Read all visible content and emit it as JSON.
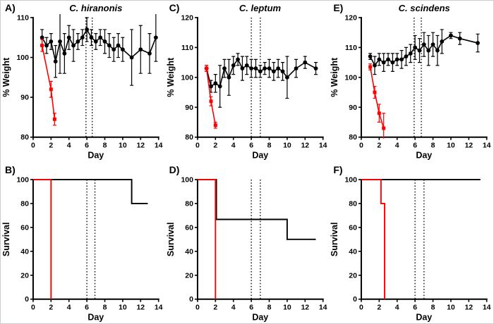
{
  "figure": {
    "background": "#ffffff",
    "border_color": "#c9ccd1",
    "black": "#000000",
    "red": "#ff0000"
  },
  "chart_data": [
    {
      "id": "A",
      "panel_label": "A)",
      "title": "C. hiranonis",
      "type": "line",
      "xlabel": "Day",
      "ylabel": "% Weight",
      "xlim": [
        0,
        14
      ],
      "ylim": [
        80,
        110
      ],
      "xticks": [
        0,
        2,
        4,
        6,
        8,
        10,
        12,
        14
      ],
      "yticks": [
        80,
        90,
        100,
        110
      ],
      "vlines": [
        5.9,
        6.6
      ],
      "series": [
        {
          "name": "black",
          "color": "#000000",
          "marker": "circle",
          "x": [
            1,
            1.5,
            2,
            2.5,
            3,
            3.5,
            4,
            4.5,
            5,
            5.5,
            6,
            6.5,
            7,
            7.5,
            8,
            8.5,
            9,
            9.5,
            10,
            11,
            12,
            13,
            13.7
          ],
          "y": [
            105,
            103,
            104,
            99,
            104,
            101,
            105,
            103,
            104,
            105,
            107,
            105,
            104,
            105,
            104,
            103,
            102,
            103,
            102,
            100,
            102,
            101,
            105
          ],
          "err": [
            2,
            2,
            2,
            4,
            8,
            5,
            3,
            4,
            2,
            2,
            3,
            2,
            2,
            2,
            3,
            3,
            3,
            3,
            3,
            7,
            6,
            5,
            6
          ]
        },
        {
          "name": "red",
          "color": "#ff0000",
          "marker": "square",
          "x": [
            1,
            2,
            2.4
          ],
          "y": [
            103,
            92,
            84.5
          ],
          "err": [
            1.5,
            2,
            1.5
          ]
        }
      ]
    },
    {
      "id": "C",
      "panel_label": "C)",
      "title": "C. leptum",
      "type": "line",
      "xlabel": "Day",
      "ylabel": "% Weight",
      "xlim": [
        0,
        14
      ],
      "ylim": [
        80,
        120
      ],
      "xticks": [
        0,
        2,
        4,
        6,
        8,
        10,
        12,
        14
      ],
      "yticks": [
        80,
        90,
        100,
        110,
        120
      ],
      "vlines": [
        6,
        7
      ],
      "series": [
        {
          "name": "black",
          "color": "#000000",
          "marker": "circle",
          "x": [
            1,
            1.5,
            2,
            2.5,
            3,
            3.5,
            4,
            4.5,
            5,
            5.5,
            6,
            6.5,
            7,
            7.5,
            8,
            8.5,
            9,
            9.5,
            10,
            11,
            12,
            13.2
          ],
          "y": [
            103,
            97,
            98,
            97,
            103,
            100,
            104,
            106,
            103,
            104,
            103,
            103,
            102,
            103,
            103,
            102,
            103,
            102,
            100,
            103,
            105,
            103
          ],
          "err": [
            1,
            2,
            3,
            7,
            3,
            6,
            3,
            2,
            4,
            3,
            3,
            3,
            2,
            2,
            3,
            3,
            3,
            3,
            7,
            3,
            2,
            2
          ]
        },
        {
          "name": "red",
          "color": "#ff0000",
          "marker": "square",
          "x": [
            1,
            1.5,
            2
          ],
          "y": [
            103,
            92,
            84
          ],
          "err": [
            1,
            1.5,
            1
          ]
        }
      ]
    },
    {
      "id": "E",
      "panel_label": "E)",
      "title": "C. scindens",
      "type": "line",
      "xlabel": "Day",
      "ylabel": "% Weight",
      "xlim": [
        0,
        14
      ],
      "ylim": [
        80,
        120
      ],
      "xticks": [
        0,
        2,
        4,
        6,
        8,
        10,
        12,
        14
      ],
      "yticks": [
        80,
        90,
        100,
        110,
        120
      ],
      "vlines": [
        5.9,
        6.7
      ],
      "series": [
        {
          "name": "black",
          "color": "#000000",
          "marker": "circle",
          "x": [
            1,
            1.5,
            2,
            2.5,
            3,
            3.5,
            4,
            4.5,
            5,
            5.5,
            6,
            6.5,
            7,
            7.5,
            8,
            8.5,
            9,
            10,
            11,
            13
          ],
          "y": [
            107,
            104,
            106,
            105,
            106,
            105,
            106,
            106,
            107,
            108,
            110,
            109,
            111,
            109,
            111,
            109,
            112,
            114,
            113,
            111.5
          ],
          "err": [
            1,
            3,
            2,
            3,
            2,
            3,
            2,
            3,
            3,
            3,
            4,
            4,
            4,
            5,
            4,
            5,
            4,
            1,
            2,
            3
          ]
        },
        {
          "name": "red",
          "color": "#ff0000",
          "marker": "square",
          "x": [
            1,
            1.5,
            2,
            2.5
          ],
          "y": [
            103.5,
            95,
            88,
            83
          ],
          "err": [
            1,
            2,
            3,
            5
          ]
        }
      ]
    },
    {
      "id": "B",
      "panel_label": "B)",
      "type": "step",
      "xlabel": "Day",
      "ylabel": "Survival",
      "xlim": [
        0,
        14
      ],
      "ylim": [
        0,
        100
      ],
      "xticks": [
        0,
        2,
        4,
        6,
        8,
        10,
        12,
        14
      ],
      "yticks": [
        0,
        20,
        40,
        60,
        80,
        100
      ],
      "vlines": [
        6,
        6.9
      ],
      "series": [
        {
          "name": "black",
          "color": "#000000",
          "points": [
            [
              0,
              100
            ],
            [
              11,
              100
            ],
            [
              11,
              80
            ],
            [
              12.8,
              80
            ]
          ]
        },
        {
          "name": "red",
          "color": "#ff0000",
          "points": [
            [
              0,
              100
            ],
            [
              2,
              100
            ],
            [
              2,
              0
            ]
          ]
        }
      ]
    },
    {
      "id": "D",
      "panel_label": "D)",
      "type": "step",
      "xlabel": "Day",
      "ylabel": "Survival",
      "xlim": [
        0,
        14
      ],
      "ylim": [
        0,
        100
      ],
      "xticks": [
        0,
        2,
        4,
        6,
        8,
        10,
        12,
        14
      ],
      "yticks": [
        0,
        20,
        40,
        60,
        80,
        100
      ],
      "vlines": [
        6,
        7
      ],
      "series": [
        {
          "name": "black",
          "color": "#000000",
          "points": [
            [
              0,
              100
            ],
            [
              2.1,
              100
            ],
            [
              2.1,
              66.7
            ],
            [
              10,
              66.7
            ],
            [
              10,
              50
            ],
            [
              13.2,
              50
            ]
          ]
        },
        {
          "name": "red",
          "color": "#ff0000",
          "points": [
            [
              0,
              100
            ],
            [
              2,
              100
            ],
            [
              2,
              0
            ]
          ]
        }
      ]
    },
    {
      "id": "F",
      "panel_label": "F)",
      "type": "step",
      "xlabel": "Day",
      "ylabel": "Survival",
      "xlim": [
        0,
        14
      ],
      "ylim": [
        0,
        100
      ],
      "xticks": [
        0,
        2,
        4,
        6,
        8,
        10,
        12,
        14
      ],
      "yticks": [
        0,
        20,
        40,
        60,
        80,
        100
      ],
      "vlines": [
        6,
        7
      ],
      "series": [
        {
          "name": "black",
          "color": "#000000",
          "points": [
            [
              0,
              100
            ],
            [
              13.3,
              100
            ]
          ]
        },
        {
          "name": "red",
          "color": "#ff0000",
          "points": [
            [
              0,
              100
            ],
            [
              2.2,
              100
            ],
            [
              2.2,
              80
            ],
            [
              2.6,
              80
            ],
            [
              2.6,
              0
            ]
          ]
        }
      ]
    }
  ]
}
